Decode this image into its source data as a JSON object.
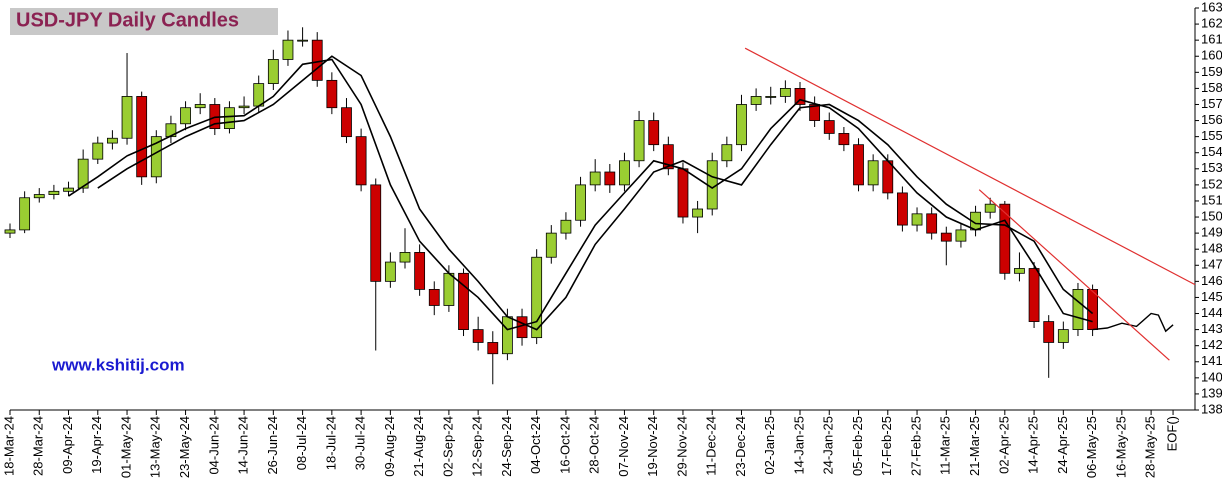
{
  "chart_data": {
    "type": "candlestick",
    "title": "USD-JPY Daily Candles",
    "annotation": "www.kshitij.com",
    "up_color": "#9acd32",
    "down_color": "#cc0000",
    "x": [
      0,
      4,
      8,
      12,
      16,
      20,
      24,
      28,
      32,
      36,
      40,
      44,
      48,
      52,
      56,
      60,
      64,
      68,
      72,
      76,
      80,
      84,
      88,
      92,
      96,
      100,
      104,
      108,
      112,
      116,
      120,
      124,
      128,
      132,
      136,
      140,
      144,
      148,
      152,
      156,
      160,
      164,
      168,
      172,
      176,
      180,
      184,
      188,
      192,
      196,
      200,
      204,
      208,
      212,
      216,
      220,
      224,
      228,
      232,
      236,
      240,
      244,
      248,
      252,
      256,
      260,
      264,
      268,
      272,
      276,
      280,
      284,
      288,
      292,
      296
    ],
    "open": [
      149.0,
      149.2,
      151.2,
      151.4,
      151.6,
      151.8,
      153.6,
      154.6,
      154.9,
      157.5,
      152.5,
      155.0,
      155.8,
      156.8,
      157.0,
      155.5,
      156.8,
      156.9,
      158.3,
      159.8,
      161.0,
      161.0,
      158.5,
      156.8,
      155.0,
      152.0,
      146.0,
      147.2,
      147.8,
      145.5,
      144.5,
      146.5,
      143.0,
      142.2,
      141.5,
      143.8,
      142.5,
      147.5,
      149.0,
      149.8,
      152.0,
      152.8,
      152.0,
      153.5,
      156.0,
      154.5,
      153.0,
      150.0,
      150.5,
      153.5,
      154.5,
      157.0,
      157.5,
      157.5,
      158.0,
      157.0,
      156.0,
      155.2,
      154.5,
      152.0,
      153.5,
      151.5,
      149.5,
      150.2,
      149.0,
      148.5,
      149.2,
      150.3,
      150.8,
      146.5,
      146.8,
      143.5,
      142.2,
      143.0,
      145.5
    ],
    "close": [
      149.2,
      151.2,
      151.4,
      151.6,
      151.8,
      153.6,
      154.6,
      154.9,
      157.5,
      152.5,
      155.0,
      155.8,
      156.8,
      157.0,
      155.5,
      156.8,
      156.9,
      158.3,
      159.8,
      161.0,
      161.0,
      158.5,
      156.8,
      155.0,
      152.0,
      146.0,
      147.2,
      147.8,
      145.5,
      144.5,
      146.5,
      143.0,
      142.2,
      141.5,
      143.8,
      142.5,
      147.5,
      149.0,
      149.8,
      152.0,
      152.8,
      152.0,
      153.5,
      156.0,
      154.5,
      153.0,
      150.0,
      150.5,
      153.5,
      154.5,
      157.0,
      157.5,
      157.5,
      158.0,
      157.0,
      156.0,
      155.2,
      154.5,
      152.0,
      153.5,
      151.5,
      149.5,
      150.2,
      149.0,
      148.5,
      149.2,
      150.3,
      150.8,
      146.5,
      146.8,
      143.5,
      142.2,
      143.0,
      145.5,
      143.0
    ],
    "high": [
      149.6,
      151.6,
      151.8,
      152.0,
      152.2,
      154.2,
      155.0,
      155.4,
      160.2,
      157.8,
      155.4,
      156.3,
      157.2,
      157.7,
      157.4,
      157.2,
      157.5,
      158.8,
      160.4,
      161.6,
      161.8,
      161.5,
      159.0,
      157.4,
      155.5,
      152.4,
      147.8,
      149.3,
      148.3,
      146.0,
      147.0,
      146.8,
      143.8,
      142.9,
      144.3,
      144.3,
      148.0,
      149.5,
      150.3,
      152.5,
      153.6,
      153.3,
      154.0,
      156.6,
      156.5,
      155.0,
      153.4,
      151.0,
      154.0,
      155.0,
      157.6,
      158.0,
      158.1,
      158.5,
      158.4,
      157.5,
      156.5,
      155.6,
      154.9,
      153.9,
      153.9,
      151.9,
      150.6,
      150.6,
      149.4,
      149.6,
      150.7,
      151.2,
      151.0,
      147.8,
      147.2,
      143.9,
      143.5,
      145.9,
      145.8
    ],
    "low": [
      148.7,
      149.0,
      150.9,
      151.1,
      151.3,
      151.5,
      153.3,
      154.2,
      154.5,
      152.0,
      152.1,
      154.6,
      155.4,
      156.4,
      155.1,
      155.2,
      156.4,
      156.5,
      157.9,
      159.4,
      160.6,
      158.1,
      156.4,
      154.6,
      151.6,
      141.7,
      145.6,
      146.8,
      145.1,
      143.9,
      144.1,
      142.6,
      141.7,
      139.6,
      141.1,
      142.0,
      142.1,
      147.1,
      148.6,
      149.4,
      151.6,
      151.5,
      151.6,
      153.1,
      154.1,
      152.6,
      149.6,
      149.0,
      150.1,
      153.1,
      154.1,
      156.6,
      157.0,
      157.1,
      156.6,
      155.6,
      154.8,
      154.1,
      151.6,
      151.6,
      151.1,
      149.1,
      149.1,
      148.6,
      147.0,
      148.1,
      148.8,
      149.9,
      146.1,
      146.0,
      143.1,
      140.0,
      141.8,
      142.6,
      142.6
    ],
    "ma_fast": {
      "x": [
        16,
        24,
        32,
        40,
        48,
        56,
        64,
        72,
        80,
        88,
        96,
        104,
        112,
        120,
        128,
        136,
        144,
        152,
        160,
        168,
        176,
        184,
        192,
        200,
        208,
        216,
        224,
        232,
        240,
        248,
        256,
        264,
        272,
        280,
        288,
        296
      ],
      "values": [
        151.3,
        152.5,
        153.8,
        154.6,
        155.5,
        156.2,
        156.3,
        157.5,
        159.5,
        159.8,
        157.0,
        152.0,
        148.5,
        146.5,
        145.0,
        143.0,
        143.5,
        146.5,
        149.5,
        151.5,
        153.5,
        153.0,
        151.8,
        153.0,
        155.5,
        157.3,
        156.8,
        155.5,
        153.5,
        151.5,
        150.0,
        149.2,
        149.8,
        147.0,
        144.0,
        143.5
      ]
    },
    "ma_slow": {
      "x": [
        24,
        32,
        40,
        48,
        56,
        64,
        72,
        80,
        88,
        96,
        104,
        112,
        120,
        128,
        136,
        144,
        152,
        160,
        168,
        176,
        184,
        192,
        200,
        208,
        216,
        224,
        232,
        240,
        248,
        256,
        264,
        272,
        280,
        288,
        296
      ],
      "values": [
        151.8,
        153.0,
        154.0,
        155.0,
        155.8,
        156.0,
        157.0,
        158.5,
        160.0,
        158.8,
        155.0,
        150.5,
        148.0,
        146.0,
        143.8,
        143.0,
        145.0,
        148.3,
        150.5,
        152.8,
        153.5,
        152.5,
        152.0,
        154.5,
        156.8,
        157.0,
        156.0,
        154.5,
        152.5,
        150.8,
        149.6,
        149.5,
        148.5,
        145.5,
        144.0
      ]
    },
    "projection": {
      "x": [
        296,
        300,
        304,
        308,
        312,
        314,
        316,
        318
      ],
      "values": [
        143.0,
        143.1,
        143.4,
        143.2,
        144.0,
        143.9,
        142.9,
        143.3
      ]
    },
    "trendlines": [
      {
        "color": "#e03030",
        "x": [
          201,
          324
        ],
        "values": [
          160.5,
          145.8
        ]
      },
      {
        "color": "#e03030",
        "x": [
          265,
          317
        ],
        "values": [
          151.7,
          141.1
        ]
      }
    ],
    "xlim": [
      0,
      324
    ],
    "ylim": [
      138,
      163
    ],
    "yticks": [
      138,
      139,
      140,
      141,
      142,
      143,
      144,
      145,
      146,
      147,
      148,
      149,
      150,
      151,
      152,
      153,
      154,
      155,
      156,
      157,
      158,
      159,
      160,
      161,
      162,
      163
    ],
    "xticks": [
      {
        "value": 0,
        "label": "18-Mar-24"
      },
      {
        "value": 8,
        "label": "28-Mar-24"
      },
      {
        "value": 16,
        "label": "09-Apr-24"
      },
      {
        "value": 24,
        "label": "19-Apr-24"
      },
      {
        "value": 32,
        "label": "01-May-24"
      },
      {
        "value": 40,
        "label": "13-May-24"
      },
      {
        "value": 48,
        "label": "23-May-24"
      },
      {
        "value": 56,
        "label": "04-Jun-24"
      },
      {
        "value": 64,
        "label": "14-Jun-24"
      },
      {
        "value": 72,
        "label": "26-Jun-24"
      },
      {
        "value": 80,
        "label": "08-Jul-24"
      },
      {
        "value": 88,
        "label": "18-Jul-24"
      },
      {
        "value": 96,
        "label": "30-Jul-24"
      },
      {
        "value": 104,
        "label": "09-Aug-24"
      },
      {
        "value": 112,
        "label": "21-Aug-24"
      },
      {
        "value": 120,
        "label": "02-Sep-24"
      },
      {
        "value": 128,
        "label": "12-Sep-24"
      },
      {
        "value": 136,
        "label": "24-Sep-24"
      },
      {
        "value": 144,
        "label": "04-Oct-24"
      },
      {
        "value": 152,
        "label": "16-Oct-24"
      },
      {
        "value": 160,
        "label": "28-Oct-24"
      },
      {
        "value": 168,
        "label": "07-Nov-24"
      },
      {
        "value": 176,
        "label": "19-Nov-24"
      },
      {
        "value": 184,
        "label": "29-Nov-24"
      },
      {
        "value": 192,
        "label": "11-Dec-24"
      },
      {
        "value": 200,
        "label": "23-Dec-24"
      },
      {
        "value": 208,
        "label": "02-Jan-25"
      },
      {
        "value": 216,
        "label": "14-Jan-25"
      },
      {
        "value": 224,
        "label": "24-Jan-25"
      },
      {
        "value": 232,
        "label": "05-Feb-25"
      },
      {
        "value": 240,
        "label": "17-Feb-25"
      },
      {
        "value": 248,
        "label": "27-Feb-25"
      },
      {
        "value": 256,
        "label": "11-Mar-25"
      },
      {
        "value": 264,
        "label": "21-Mar-25"
      },
      {
        "value": 272,
        "label": "02-Apr-25"
      },
      {
        "value": 280,
        "label": "14-Apr-25"
      },
      {
        "value": 288,
        "label": "24-Apr-25"
      },
      {
        "value": 296,
        "label": "06-May-25"
      },
      {
        "value": 304,
        "label": "16-May-25"
      },
      {
        "value": 312,
        "label": "28-May-25"
      },
      {
        "value": 318,
        "label": "EOF()"
      }
    ]
  }
}
